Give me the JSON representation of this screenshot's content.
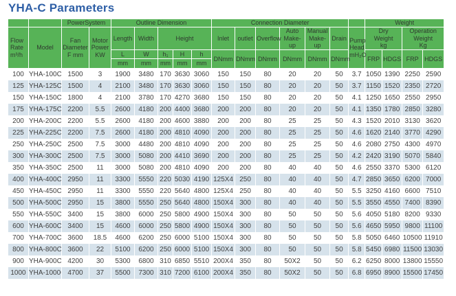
{
  "title": "YHA-C Parameters",
  "colors": {
    "header_green": "#57b357",
    "row_alt_blue": "#d6e2eb",
    "title_blue": "#2e5fa6"
  },
  "table": {
    "groups": {
      "power_system": "PowerSystem",
      "outline_dimension": "Outline Dimension",
      "connection_diameter": "Connection Diameter",
      "weight": "Weight"
    },
    "headers": {
      "flow_rate": "Flow\nRate\nm³/h",
      "model": "Model",
      "fan_diameter": "Fan\nDiameter\nF mm",
      "motor_power": "Motor\nPower\nKW",
      "length": "Length",
      "width": "Width",
      "height": "Height",
      "dim_letters": [
        "L",
        "W",
        "h₁",
        "H",
        "h"
      ],
      "dim_unit": "mm",
      "inlet": "Inlet",
      "outlet": "outlet",
      "overflow": "Overflow",
      "auto_makeup": "Auto\nMake-up",
      "manual_makeup": "Manual\nMake-up",
      "drain": "Drain",
      "dn_unit": "DNmm",
      "pump_head": "Pump\nHead\nmH₂O",
      "dry_weight": "Dry\nWeight\nkg",
      "operation_weight": "Operation\nWeight\nKg",
      "frp": "FRP",
      "hdgs": "HDGS"
    },
    "rows": [
      [
        "100",
        "YHA-100C",
        "1500",
        "3",
        "1900",
        "3480",
        "170",
        "3630",
        "3060",
        "150",
        "150",
        "80",
        "20",
        "20",
        "50",
        "3.7",
        "1050",
        "1390",
        "2250",
        "2590"
      ],
      [
        "125",
        "YHA-125C",
        "1500",
        "4",
        "2100",
        "3480",
        "170",
        "3630",
        "3060",
        "150",
        "150",
        "80",
        "20",
        "20",
        "50",
        "3.7",
        "1150",
        "1520",
        "2350",
        "2720"
      ],
      [
        "150",
        "YHA-150C",
        "1800",
        "4",
        "2100",
        "3780",
        "170",
        "4270",
        "3680",
        "150",
        "150",
        "80",
        "20",
        "20",
        "50",
        "4.1",
        "1250",
        "1650",
        "2550",
        "2950"
      ],
      [
        "175",
        "YHA-175C",
        "2200",
        "5.5",
        "2600",
        "4180",
        "200",
        "4400",
        "3680",
        "200",
        "200",
        "80",
        "20",
        "20",
        "50",
        "4.1",
        "1350",
        "1780",
        "2850",
        "3280"
      ],
      [
        "200",
        "YHA-200C",
        "2200",
        "5.5",
        "2600",
        "4180",
        "200",
        "4600",
        "3880",
        "200",
        "200",
        "80",
        "25",
        "25",
        "50",
        "4.3",
        "1520",
        "2010",
        "3130",
        "3620"
      ],
      [
        "225",
        "YHA-225C",
        "2200",
        "7.5",
        "2600",
        "4180",
        "200",
        "4810",
        "4090",
        "200",
        "200",
        "80",
        "25",
        "25",
        "50",
        "4.6",
        "1620",
        "2140",
        "3770",
        "4290"
      ],
      [
        "250",
        "YHA-250C",
        "2500",
        "7.5",
        "3000",
        "4480",
        "200",
        "4810",
        "4090",
        "200",
        "200",
        "80",
        "25",
        "25",
        "50",
        "4.6",
        "2080",
        "2750",
        "4300",
        "4970"
      ],
      [
        "300",
        "YHA-300C",
        "2500",
        "7.5",
        "3000",
        "5080",
        "200",
        "4410",
        "3690",
        "200",
        "200",
        "80",
        "25",
        "25",
        "50",
        "4.2",
        "2420",
        "3190",
        "5070",
        "5840"
      ],
      [
        "350",
        "YHA-350C",
        "2500",
        "11",
        "3000",
        "5080",
        "200",
        "4810",
        "4090",
        "200",
        "200",
        "80",
        "40",
        "40",
        "50",
        "4.6",
        "2550",
        "3370",
        "5300",
        "6120"
      ],
      [
        "400",
        "YHA-400C",
        "2950",
        "11",
        "3300",
        "5550",
        "220",
        "5030",
        "4190",
        "125X4",
        "250",
        "80",
        "40",
        "40",
        "50",
        "4.7",
        "2850",
        "3650",
        "6200",
        "7000"
      ],
      [
        "450",
        "YHA-450C",
        "2950",
        "11",
        "3300",
        "5550",
        "220",
        "5640",
        "4800",
        "125X4",
        "250",
        "80",
        "40",
        "40",
        "50",
        "5.5",
        "3250",
        "4160",
        "6600",
        "7510"
      ],
      [
        "500",
        "YHA-500C",
        "2950",
        "15",
        "3800",
        "5550",
        "250",
        "5640",
        "4800",
        "150X4",
        "300",
        "80",
        "40",
        "40",
        "50",
        "5.5",
        "3550",
        "4550",
        "7400",
        "8390"
      ],
      [
        "550",
        "YHA-550C",
        "3400",
        "15",
        "3800",
        "6000",
        "250",
        "5800",
        "4900",
        "150X4",
        "300",
        "80",
        "50",
        "50",
        "50",
        "5.6",
        "4050",
        "5180",
        "8200",
        "9330"
      ],
      [
        "600",
        "YHA-600C",
        "3400",
        "15",
        "4600",
        "6000",
        "250",
        "5800",
        "4900",
        "150X4",
        "300",
        "80",
        "50",
        "50",
        "50",
        "5.6",
        "4650",
        "5950",
        "9800",
        "11100"
      ],
      [
        "700",
        "YHA-700C",
        "3600",
        "18.5",
        "4600",
        "6200",
        "250",
        "6000",
        "5100",
        "150X4",
        "300",
        "80",
        "50",
        "50",
        "50",
        "5.8",
        "5050",
        "6460",
        "10500",
        "11910"
      ],
      [
        "800",
        "YHA-800C",
        "3600",
        "22",
        "5100",
        "6200",
        "250",
        "6000",
        "5100",
        "150X4",
        "300",
        "80",
        "50",
        "50",
        "50",
        "5.8",
        "5450",
        "6980",
        "11500",
        "13030"
      ],
      [
        "900",
        "YHA-900C",
        "4200",
        "30",
        "5300",
        "6800",
        "310",
        "6850",
        "5510",
        "200X4",
        "350",
        "80",
        "50X2",
        "50",
        "50",
        "6.2",
        "6250",
        "8000",
        "13800",
        "15550"
      ],
      [
        "1000",
        "YHA-1000C",
        "4700",
        "37",
        "5500",
        "7300",
        "310",
        "7200",
        "6100",
        "200X4",
        "350",
        "80",
        "50X2",
        "50",
        "50",
        "6.8",
        "6950",
        "8900",
        "15500",
        "17450"
      ]
    ],
    "column_keys": [
      "flow-rate",
      "model",
      "fan-diameter",
      "motor-power",
      "length",
      "width",
      "h1",
      "h-overall",
      "h",
      "inlet",
      "outlet",
      "overflow",
      "auto-make-up",
      "manual-make-up",
      "drain",
      "pump-head",
      "dry-weight-frp",
      "dry-weight-hdgs",
      "operation-weight-frp",
      "operation-weight-hdgs"
    ]
  }
}
